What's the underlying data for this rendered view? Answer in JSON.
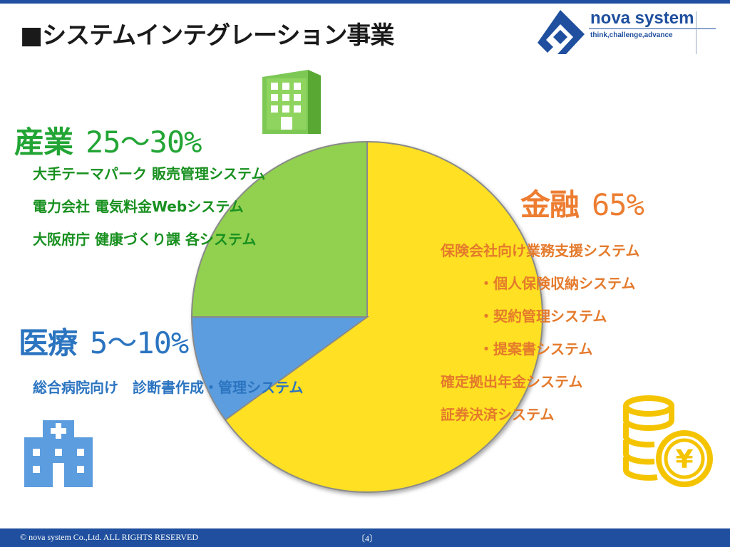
{
  "header": {
    "title": "■システムインテグレーション事業",
    "logo_name": "nova system",
    "logo_tagline": "think,challenge,advance"
  },
  "chart_data": {
    "type": "pie",
    "series": [
      {
        "label": "金融",
        "pct_text": "65%",
        "value": 65,
        "color": "#ffe020"
      },
      {
        "label": "医療",
        "pct_text": "5～10%",
        "value": 10,
        "color": "#5b9ddf"
      },
      {
        "label": "産業",
        "pct_text": "25～30%",
        "value": 25,
        "color": "#92d050"
      }
    ],
    "start": "top",
    "direction": "clockwise"
  },
  "industry": {
    "label": "産業",
    "pct": "25～30%",
    "items": [
      "大手テーマパーク 販売管理システム",
      "電力会社 電気料金Webシステム",
      "大阪府庁 健康づくり課 各システム"
    ]
  },
  "finance": {
    "label": "金融",
    "pct": "65%",
    "items": [
      "保険会社向け業務支援システム",
      "・個人保険収納システム",
      "・契約管理システム",
      "・提案書システム",
      "確定拠出年金システム",
      "証券決済システム"
    ]
  },
  "medical": {
    "label": "医療",
    "pct": "5～10%",
    "items": [
      "総合病院向け　診断書作成・管理システム"
    ]
  },
  "icons": {
    "office": "office-building-icon",
    "hospital": "hospital-building-icon",
    "coins": "yen-coins-icon",
    "coin_symbol": "¥"
  },
  "footer": {
    "copyright": "© nova system Co.,Ltd. ALL RIGHTS RESERVED",
    "page": "〔4〕"
  }
}
